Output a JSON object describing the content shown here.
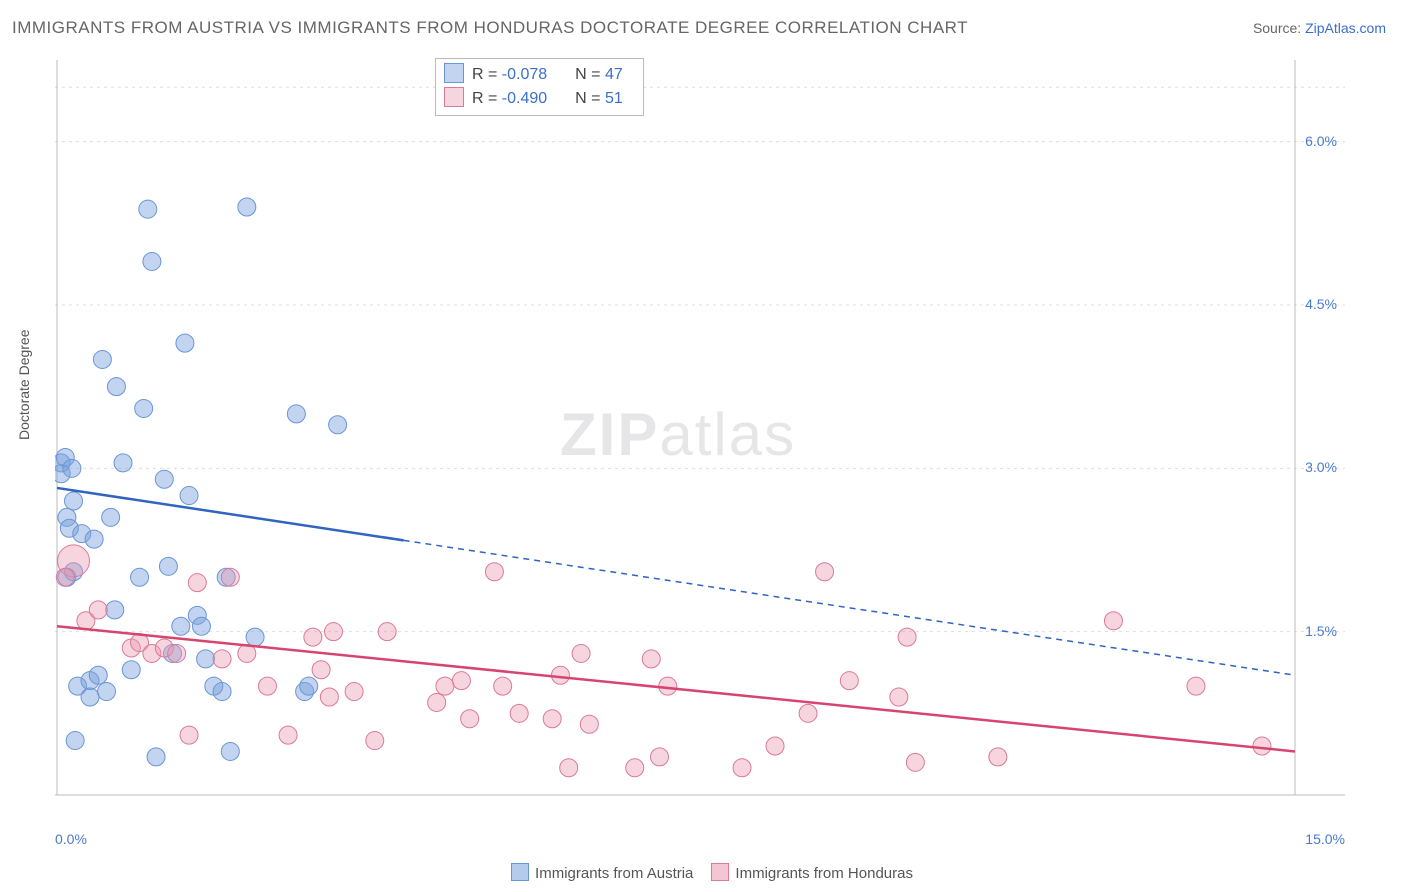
{
  "title": "IMMIGRANTS FROM AUSTRIA VS IMMIGRANTS FROM HONDURAS DOCTORATE DEGREE CORRELATION CHART",
  "source_prefix": "Source: ",
  "source_link": "ZipAtlas.com",
  "ylabel": "Doctorate Degree",
  "watermark_bold": "ZIP",
  "watermark_light": "atlas",
  "chart": {
    "type": "scatter",
    "xlim": [
      0.0,
      15.0
    ],
    "ylim": [
      0.0,
      6.75
    ],
    "xticks": [
      {
        "v": 0.0,
        "label": "0.0%"
      },
      {
        "v": 15.0,
        "label": "15.0%"
      }
    ],
    "yticks": [
      {
        "v": 1.5,
        "label": "1.5%"
      },
      {
        "v": 3.0,
        "label": "3.0%"
      },
      {
        "v": 4.5,
        "label": "4.5%"
      },
      {
        "v": 6.0,
        "label": "6.0%"
      }
    ],
    "grid_color": "#dddddd",
    "axis_color": "#bbbbbb",
    "background": "#ffffff",
    "marker_radius": 9,
    "marker_radius_large": 16,
    "axis_label_color": "#4a7bd0",
    "label_fontsize": 14
  },
  "series": [
    {
      "name": "Immigrants from Austria",
      "fill": "rgba(120,160,220,0.45)",
      "stroke": "#6a96d6",
      "line_color": "#2f64c0",
      "R_label": "R =",
      "R": "-0.078",
      "N_label": "N =",
      "N": "47",
      "trend": {
        "x1": 0.0,
        "y1": 2.82,
        "x2": 15.0,
        "y2": 1.1,
        "solid_until_x": 4.2
      },
      "points": [
        [
          0.05,
          3.05
        ],
        [
          0.05,
          2.95
        ],
        [
          0.1,
          3.1
        ],
        [
          0.12,
          2.0
        ],
        [
          0.12,
          2.55
        ],
        [
          0.15,
          2.45
        ],
        [
          0.18,
          3.0
        ],
        [
          0.2,
          2.7
        ],
        [
          0.2,
          2.05
        ],
        [
          0.22,
          0.5
        ],
        [
          0.25,
          1.0
        ],
        [
          0.3,
          2.4
        ],
        [
          0.4,
          1.05
        ],
        [
          0.4,
          0.9
        ],
        [
          0.45,
          2.35
        ],
        [
          0.5,
          1.1
        ],
        [
          0.55,
          4.0
        ],
        [
          0.6,
          0.95
        ],
        [
          0.65,
          2.55
        ],
        [
          0.7,
          1.7
        ],
        [
          0.72,
          3.75
        ],
        [
          0.8,
          3.05
        ],
        [
          0.9,
          1.15
        ],
        [
          1.0,
          2.0
        ],
        [
          1.05,
          3.55
        ],
        [
          1.1,
          5.38
        ],
        [
          1.15,
          4.9
        ],
        [
          1.2,
          0.35
        ],
        [
          1.3,
          2.9
        ],
        [
          1.35,
          2.1
        ],
        [
          1.4,
          1.3
        ],
        [
          1.5,
          1.55
        ],
        [
          1.55,
          4.15
        ],
        [
          1.6,
          2.75
        ],
        [
          1.7,
          1.65
        ],
        [
          1.75,
          1.55
        ],
        [
          1.8,
          1.25
        ],
        [
          1.9,
          1.0
        ],
        [
          2.0,
          0.95
        ],
        [
          2.05,
          2.0
        ],
        [
          2.1,
          0.4
        ],
        [
          2.3,
          5.4
        ],
        [
          2.4,
          1.45
        ],
        [
          2.9,
          3.5
        ],
        [
          3.0,
          0.95
        ],
        [
          3.05,
          1.0
        ],
        [
          3.4,
          3.4
        ]
      ]
    },
    {
      "name": "Immigrants from Honduras",
      "fill": "rgba(235,150,175,0.40)",
      "stroke": "#d97a9a",
      "line_color": "#d6456f",
      "R_label": "R =",
      "R": "-0.490",
      "N_label": "N =",
      "N": "51",
      "trend": {
        "x1": 0.0,
        "y1": 1.55,
        "x2": 15.0,
        "y2": 0.4,
        "solid_until_x": 15.0
      },
      "large_points": [
        [
          0.2,
          2.15
        ]
      ],
      "points": [
        [
          0.1,
          2.0
        ],
        [
          0.35,
          1.6
        ],
        [
          0.5,
          1.7
        ],
        [
          0.9,
          1.35
        ],
        [
          1.0,
          1.4
        ],
        [
          1.15,
          1.3
        ],
        [
          1.3,
          1.35
        ],
        [
          1.45,
          1.3
        ],
        [
          1.6,
          0.55
        ],
        [
          1.7,
          1.95
        ],
        [
          2.0,
          1.25
        ],
        [
          2.1,
          2.0
        ],
        [
          2.3,
          1.3
        ],
        [
          2.55,
          1.0
        ],
        [
          2.8,
          0.55
        ],
        [
          3.1,
          1.45
        ],
        [
          3.2,
          1.15
        ],
        [
          3.3,
          0.9
        ],
        [
          3.35,
          1.5
        ],
        [
          3.6,
          0.95
        ],
        [
          3.85,
          0.5
        ],
        [
          4.0,
          1.5
        ],
        [
          4.6,
          0.85
        ],
        [
          4.7,
          1.0
        ],
        [
          4.9,
          1.05
        ],
        [
          5.0,
          0.7
        ],
        [
          5.3,
          2.05
        ],
        [
          5.4,
          1.0
        ],
        [
          5.6,
          0.75
        ],
        [
          6.0,
          0.7
        ],
        [
          6.1,
          1.1
        ],
        [
          6.2,
          0.25
        ],
        [
          6.35,
          1.3
        ],
        [
          6.45,
          0.65
        ],
        [
          7.0,
          0.25
        ],
        [
          7.2,
          1.25
        ],
        [
          7.3,
          0.35
        ],
        [
          7.4,
          1.0
        ],
        [
          8.3,
          0.25
        ],
        [
          8.7,
          0.45
        ],
        [
          9.1,
          0.75
        ],
        [
          9.3,
          2.05
        ],
        [
          9.6,
          1.05
        ],
        [
          10.2,
          0.9
        ],
        [
          10.3,
          1.45
        ],
        [
          10.4,
          0.3
        ],
        [
          11.4,
          0.35
        ],
        [
          12.8,
          1.6
        ],
        [
          13.8,
          1.0
        ],
        [
          14.6,
          0.45
        ]
      ]
    }
  ],
  "bottom_legend": [
    {
      "swatch_fill": "rgba(120,160,220,0.55)",
      "swatch_stroke": "#6a96d6",
      "label": "Immigrants from Austria"
    },
    {
      "swatch_fill": "rgba(235,150,175,0.55)",
      "swatch_stroke": "#d97a9a",
      "label": "Immigrants from Honduras"
    }
  ]
}
